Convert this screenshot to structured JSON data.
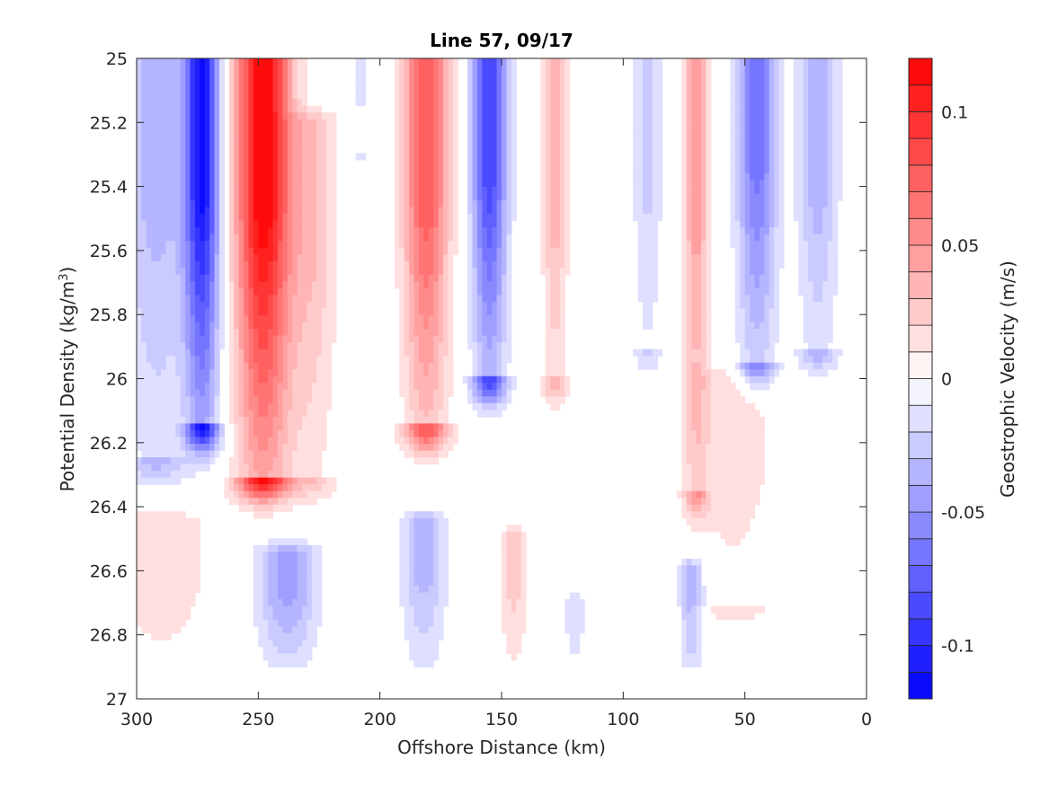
{
  "chart_data": {
    "type": "heatmap",
    "title": "Line 57, 09/17",
    "xlabel": "Offshore Distance (km)",
    "ylabel_main": "Potential Density (kg/m",
    "ylabel_sup": "3",
    "ylabel_close": ")",
    "xlim": [
      300,
      0
    ],
    "ylim": [
      25,
      27
    ],
    "x_ticks": [
      "300",
      "250",
      "200",
      "150",
      "100",
      "50",
      "0"
    ],
    "y_ticks": [
      "25",
      "25.2",
      "25.4",
      "25.6",
      "25.8",
      "26",
      "26.2",
      "26.4",
      "26.6",
      "26.8",
      "27"
    ],
    "colorbar": {
      "label": "Geostrophic Velocity (m/s)",
      "range": [
        -0.12,
        0.12
      ],
      "levels": 24,
      "ticks": [
        "0.1",
        "0.05",
        "0",
        "-0.05",
        "-0.1"
      ],
      "tick_values": [
        0.1,
        0.05,
        0,
        -0.05,
        -0.1
      ],
      "positive_color": "#ff0000",
      "negative_color": "#0000ff",
      "zero_color": "#ffffff"
    },
    "data_bottom_density": 26.9,
    "jets": [
      {
        "x": 292,
        "w": 14,
        "amp": -0.035,
        "top": 25.0,
        "bottom": 26.25
      },
      {
        "x": 273,
        "w": 7,
        "amp": -0.11,
        "top": 25.0,
        "bottom": 26.15
      },
      {
        "x": 248,
        "w": 11,
        "amp": 0.12,
        "top": 25.0,
        "bottom": 26.3
      },
      {
        "x": 228,
        "w": 10,
        "amp": 0.03,
        "top": 25.2,
        "bottom": 26.3
      },
      {
        "x": 181,
        "w": 9,
        "amp": 0.08,
        "top": 25.0,
        "bottom": 26.15
      },
      {
        "x": 155,
        "w": 7,
        "amp": -0.09,
        "top": 25.0,
        "bottom": 26.0
      },
      {
        "x": 128,
        "w": 5,
        "amp": 0.04,
        "top": 25.0,
        "bottom": 26.0
      },
      {
        "x": 208,
        "w": 4,
        "amp": -0.012,
        "top": 25.0,
        "bottom": 25.3
      },
      {
        "x": 90,
        "w": 6,
        "amp": -0.025,
        "top": 25.0,
        "bottom": 25.9
      },
      {
        "x": 70,
        "w": 5,
        "amp": 0.045,
        "top": 25.0,
        "bottom": 26.35
      },
      {
        "x": 45,
        "w": 8,
        "amp": -0.065,
        "top": 25.0,
        "bottom": 25.95
      },
      {
        "x": 20,
        "w": 8,
        "amp": -0.04,
        "top": 25.0,
        "bottom": 25.9
      },
      {
        "x": 290,
        "w": 22,
        "amp": 0.018,
        "top": 26.45,
        "bottom": 26.9
      },
      {
        "x": 238,
        "w": 12,
        "amp": -0.045,
        "top": 26.55,
        "bottom": 26.9
      },
      {
        "x": 182,
        "w": 9,
        "amp": -0.035,
        "top": 26.45,
        "bottom": 26.9
      },
      {
        "x": 145,
        "w": 6,
        "amp": 0.025,
        "top": 26.5,
        "bottom": 26.9
      },
      {
        "x": 120,
        "w": 4,
        "amp": -0.02,
        "top": 26.7,
        "bottom": 26.9
      },
      {
        "x": 72,
        "w": 5,
        "amp": -0.04,
        "top": 26.6,
        "bottom": 26.9
      },
      {
        "x": 55,
        "w": 20,
        "amp": 0.016,
        "top": 26.0,
        "bottom": 26.7
      }
    ]
  }
}
